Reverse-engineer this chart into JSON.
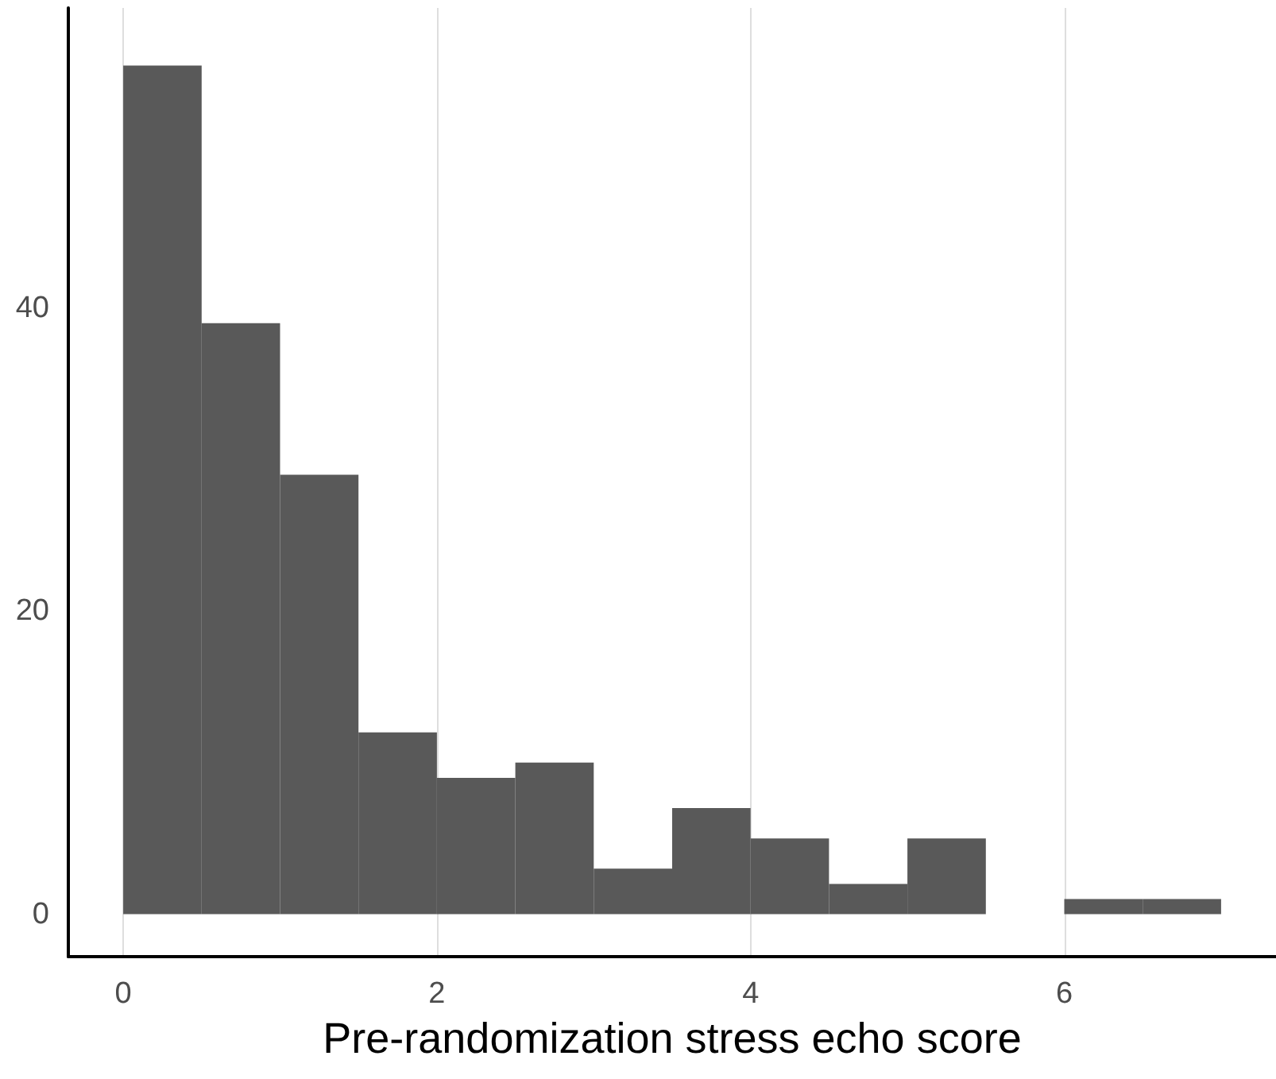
{
  "chart_data": {
    "type": "histogram",
    "xlabel": "Pre-randomization stress echo score",
    "bins": [
      0,
      0.5,
      1,
      1.5,
      2,
      2.5,
      3,
      3.5,
      4,
      4.5,
      5,
      5.5,
      6,
      6.5,
      7
    ],
    "values": [
      56,
      39,
      29,
      12,
      9,
      10,
      3,
      7,
      5,
      2,
      5,
      0,
      1,
      1
    ],
    "color": "#595959",
    "xlim": [
      -0.35,
      7.35
    ],
    "ylim": [
      -2.8,
      59.8
    ],
    "xticks": [
      0,
      2,
      4,
      6
    ],
    "yticks": [
      0,
      20,
      40
    ],
    "grid": "x"
  }
}
